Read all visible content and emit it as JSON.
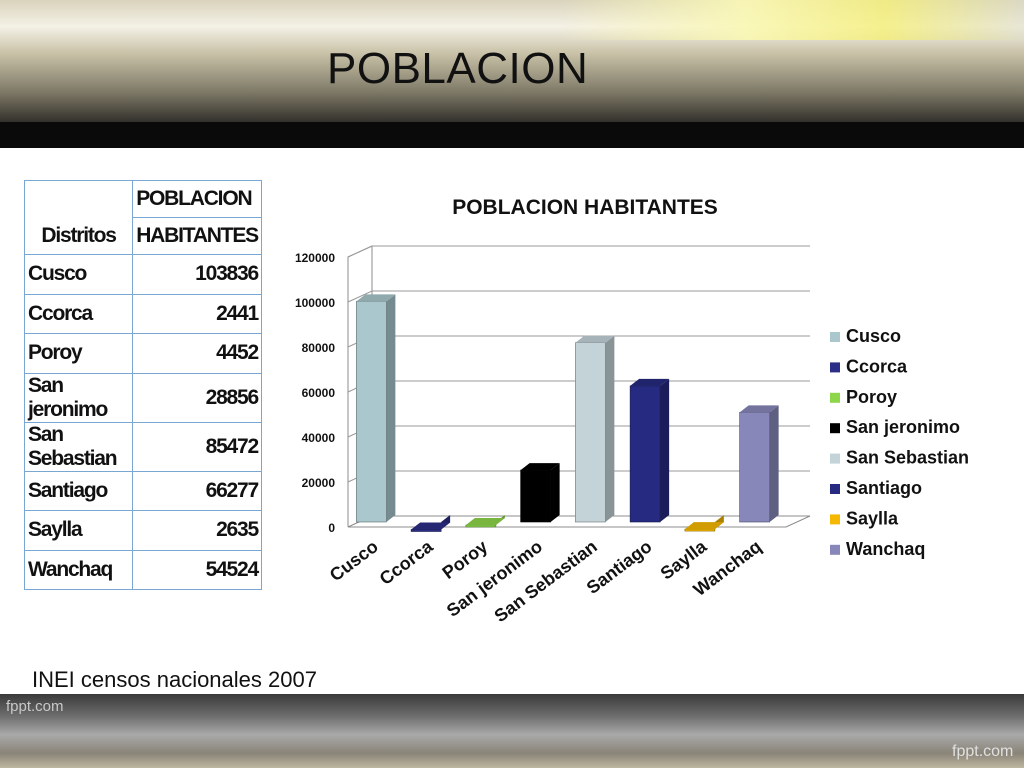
{
  "slide": {
    "title": "POBLACION",
    "source": "INEI censos nacionales 2007",
    "watermark_left": "fppt.com",
    "watermark_right": "fppt.com"
  },
  "table": {
    "header_col1": "Distritos",
    "header_col2_line1": "POBLACION",
    "header_col2_line2": "HABITANTES",
    "rows": [
      {
        "distrito": "Cusco",
        "habitantes": "103836"
      },
      {
        "distrito": "Ccorca",
        "habitantes": "2441"
      },
      {
        "distrito": "Poroy",
        "habitantes": "4452"
      },
      {
        "distrito": "San jeronimo",
        "habitantes": "28856"
      },
      {
        "distrito": "San Sebastian",
        "habitantes": "85472"
      },
      {
        "distrito": "Santiago",
        "habitantes": "66277"
      },
      {
        "distrito": "Saylla",
        "habitantes": "2635"
      },
      {
        "distrito": "Wanchaq",
        "habitantes": "54524"
      }
    ]
  },
  "chart_data": {
    "type": "bar",
    "title": "POBLACION  HABITANTES",
    "categories": [
      "Cusco",
      "Ccorca",
      "Poroy",
      "San jeronimo",
      "San Sebastian",
      "Santiago",
      "Saylla",
      "Wanchaq"
    ],
    "values": [
      103836,
      2441,
      4452,
      28856,
      85472,
      66277,
      2635,
      54524
    ],
    "colors": [
      "#a9c7cc",
      "#2b2e86",
      "#8dd64a",
      "#000000",
      "#c3d3d8",
      "#262a80",
      "#f5b800",
      "#8787ba"
    ],
    "ylim": [
      0,
      120000
    ],
    "yticks": [
      "0",
      "20000",
      "40000",
      "60000",
      "80000",
      "100000",
      "120000"
    ],
    "grid": true,
    "legend_position": "right",
    "style": "3d"
  }
}
